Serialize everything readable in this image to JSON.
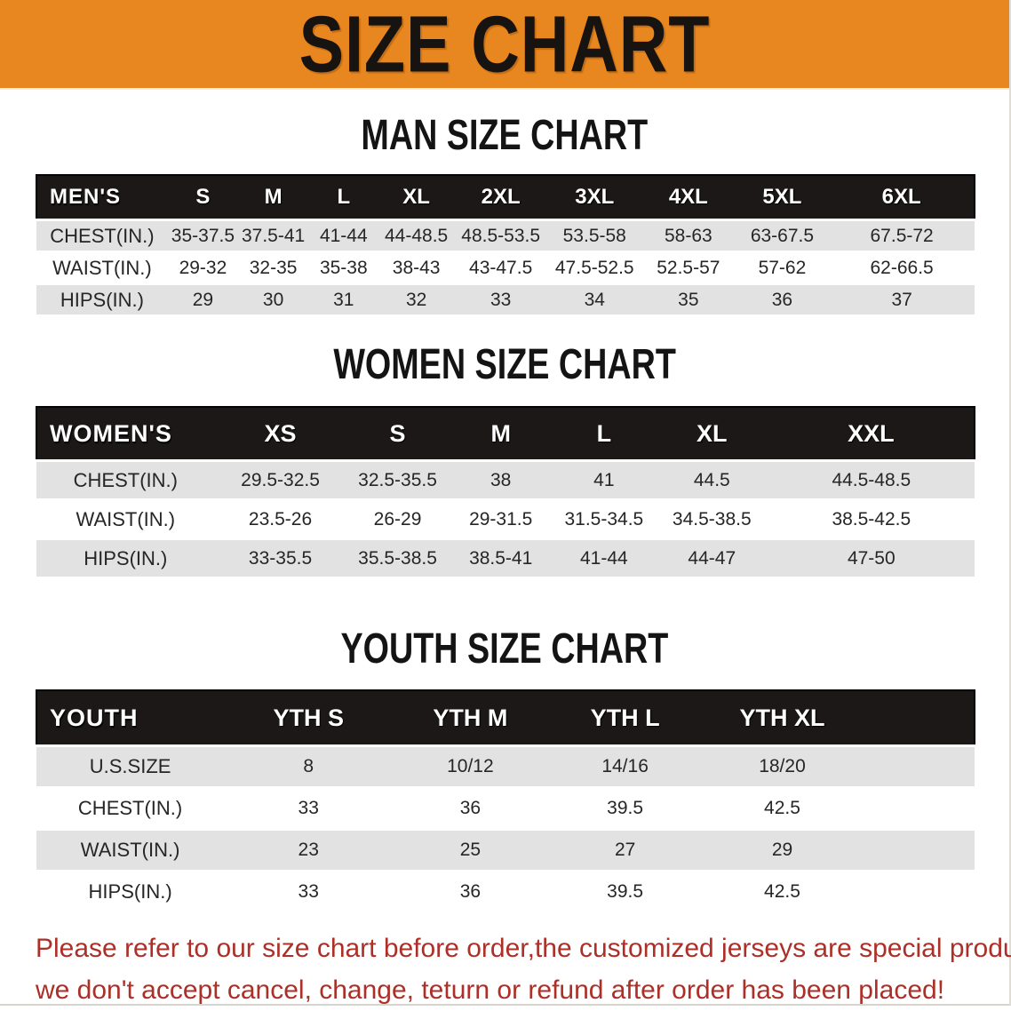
{
  "banner": {
    "title": "SIZE CHART"
  },
  "sections": [
    {
      "heading": "MAN SIZE CHART",
      "corner": "MEN'S",
      "columns": [
        "S",
        "M",
        "L",
        "XL",
        "2XL",
        "3XL",
        "4XL",
        "5XL",
        "6XL"
      ],
      "rows": [
        {
          "label": "CHEST(IN.)",
          "values": [
            "35-37.5",
            "37.5-41",
            "41-44",
            "44-48.5",
            "48.5-53.5",
            "53.5-58",
            "58-63",
            "63-67.5",
            "67.5-72"
          ]
        },
        {
          "label": "WAIST(IN.)",
          "values": [
            "29-32",
            "32-35",
            "35-38",
            "38-43",
            "43-47.5",
            "47.5-52.5",
            "52.5-57",
            "57-62",
            "62-66.5"
          ]
        },
        {
          "label": "HIPS(IN.)",
          "values": [
            "29",
            "30",
            "31",
            "32",
            "33",
            "34",
            "35",
            "36",
            "37"
          ]
        }
      ]
    },
    {
      "heading": "WOMEN SIZE CHART",
      "corner": "WOMEN'S",
      "columns": [
        "XS",
        "S",
        "M",
        "L",
        "XL",
        "XXL"
      ],
      "rows": [
        {
          "label": "CHEST(IN.)",
          "values": [
            "29.5-32.5",
            "32.5-35.5",
            "38",
            "41",
            "44.5",
            "44.5-48.5"
          ]
        },
        {
          "label": "WAIST(IN.)",
          "values": [
            "23.5-26",
            "26-29",
            "29-31.5",
            "31.5-34.5",
            "34.5-38.5",
            "38.5-42.5"
          ]
        },
        {
          "label": "HIPS(IN.)",
          "values": [
            "33-35.5",
            "35.5-38.5",
            "38.5-41",
            "41-44",
            "44-47",
            "47-50"
          ]
        }
      ]
    },
    {
      "heading": "YOUTH SIZE CHART",
      "corner": "YOUTH",
      "columns": [
        "YTH S",
        "YTH M",
        "YTH L",
        "YTH XL"
      ],
      "rows": [
        {
          "label": "U.S.SIZE",
          "values": [
            "8",
            "10/12",
            "14/16",
            "18/20"
          ]
        },
        {
          "label": "CHEST(IN.)",
          "values": [
            "33",
            "36",
            "39.5",
            "42.5"
          ]
        },
        {
          "label": "WAIST(IN.)",
          "values": [
            "23",
            "25",
            "27",
            "29"
          ]
        },
        {
          "label": "HIPS(IN.)",
          "values": [
            "33",
            "36",
            "39.5",
            "42.5"
          ]
        }
      ]
    }
  ],
  "disclaimer": {
    "line1": "Please refer to our size chart before order,the customized jerseys are special products,",
    "line2": "we don't accept cancel, change, teturn or refund after order has been placed!"
  },
  "colors": {
    "banner_orange": "#E8861F",
    "header_black": "#1C1817",
    "stripe_gray": "#E2E2E2",
    "disclaimer_red": "#AC2F28"
  }
}
